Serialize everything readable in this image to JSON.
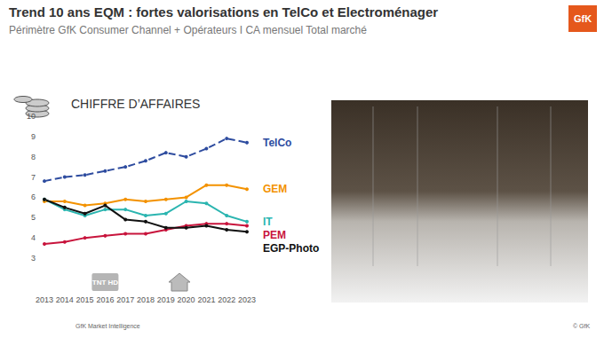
{
  "title": "Trend 10 ans EQM : fortes valorisations en TelCo et Electroménager",
  "subtitle": "Périmètre GfK Consumer Channel + Opérateurs I CA mensuel Total marché",
  "logo": "GfK",
  "footer_left": "GfK Market Intelligence",
  "footer_right": "© GfK",
  "chart_data": {
    "type": "line",
    "title": "CHIFFRE D’AFFAIRES",
    "categories": [
      "2013",
      "2014",
      "2015",
      "2016",
      "2017",
      "2018",
      "2019",
      "2020",
      "2021",
      "2022",
      "2023"
    ],
    "series": [
      {
        "name": "TelCo",
        "color": "#2E4C9F",
        "line_style": "dashed",
        "values": [
          6.8,
          7.0,
          7.1,
          7.3,
          7.5,
          7.8,
          8.2,
          8.0,
          8.4,
          8.9,
          8.7
        ]
      },
      {
        "name": "GEM",
        "color": "#F39200",
        "line_style": "solid",
        "values": [
          5.8,
          5.8,
          5.6,
          5.7,
          5.9,
          5.8,
          5.9,
          6.0,
          6.6,
          6.6,
          6.4
        ]
      },
      {
        "name": "IT",
        "color": "#2BB5B0",
        "line_style": "solid",
        "values": [
          5.9,
          5.4,
          5.1,
          5.4,
          5.4,
          5.1,
          5.2,
          5.8,
          5.7,
          5.1,
          4.8
        ]
      },
      {
        "name": "PEM",
        "color": "#C8143C",
        "line_style": "solid",
        "values": [
          3.7,
          3.8,
          4.0,
          4.1,
          4.2,
          4.2,
          4.4,
          4.6,
          4.7,
          4.7,
          4.6
        ]
      },
      {
        "name": "EGP-Photo",
        "color": "#111111",
        "line_style": "solid",
        "values": [
          5.9,
          5.5,
          5.2,
          5.6,
          4.9,
          4.8,
          4.5,
          4.5,
          4.6,
          4.4,
          4.3
        ]
      }
    ],
    "ylim": [
      3,
      10
    ],
    "yticks": [
      3,
      4,
      5,
      6,
      7,
      8,
      9,
      10
    ],
    "grid": false,
    "marker": "circle",
    "annotations": [
      {
        "x": "2016",
        "text": "TNT HD"
      }
    ]
  }
}
